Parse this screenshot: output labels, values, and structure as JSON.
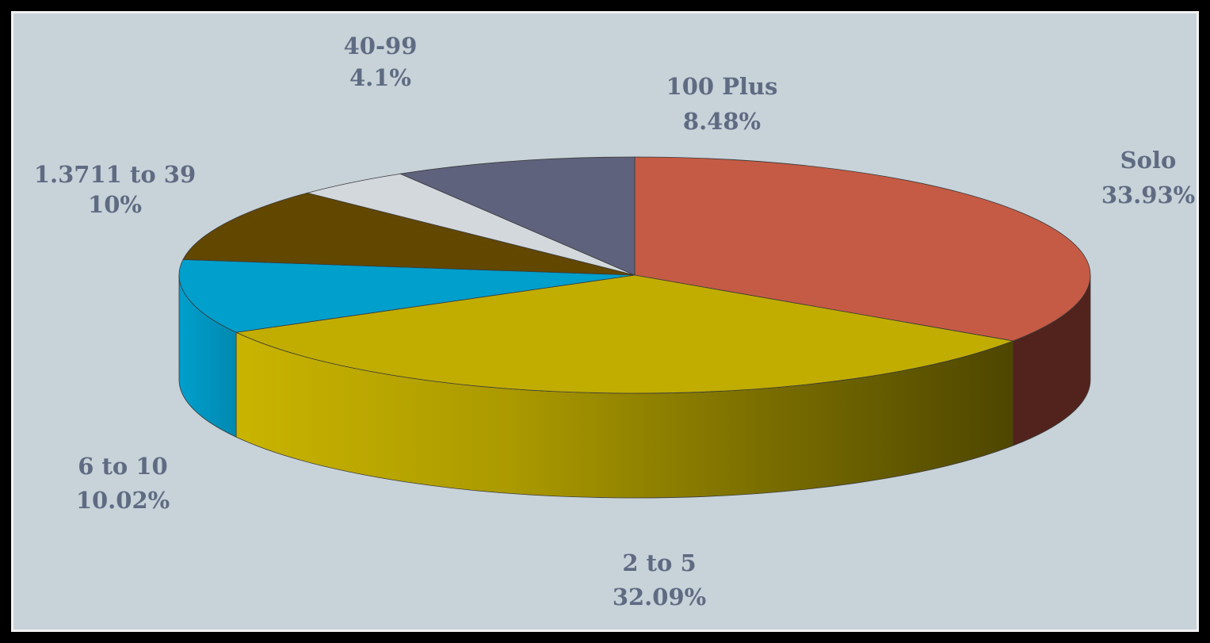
{
  "chart_data": {
    "type": "pie",
    "style": "3d",
    "title": "",
    "slices": [
      {
        "label": "Solo",
        "value_text": "33.93%",
        "value": 33.93,
        "color": "#c55b45",
        "side": "#52231d"
      },
      {
        "label": "2 to 5",
        "value_text": "32.09%",
        "value": 32.09,
        "color": "#c1ad00",
        "side": "#a89400"
      },
      {
        "label": "6 to 10",
        "value_text": "10.02%",
        "value": 10.02,
        "color": "#009fcc",
        "side": "#0087ad"
      },
      {
        "label": "1.3711 to 39",
        "value_text": "10%",
        "value": 10.0,
        "color": "#624700",
        "side": "#4a3600"
      },
      {
        "label": "40-99",
        "value_text": "4.1%",
        "value": 4.1,
        "color": "#d3d8dd",
        "side": "#b7bdc2"
      },
      {
        "label": "100 Plus",
        "value_text": "8.48%",
        "value": 8.48,
        "color": "#5f627d",
        "side": "#474a60"
      }
    ]
  }
}
